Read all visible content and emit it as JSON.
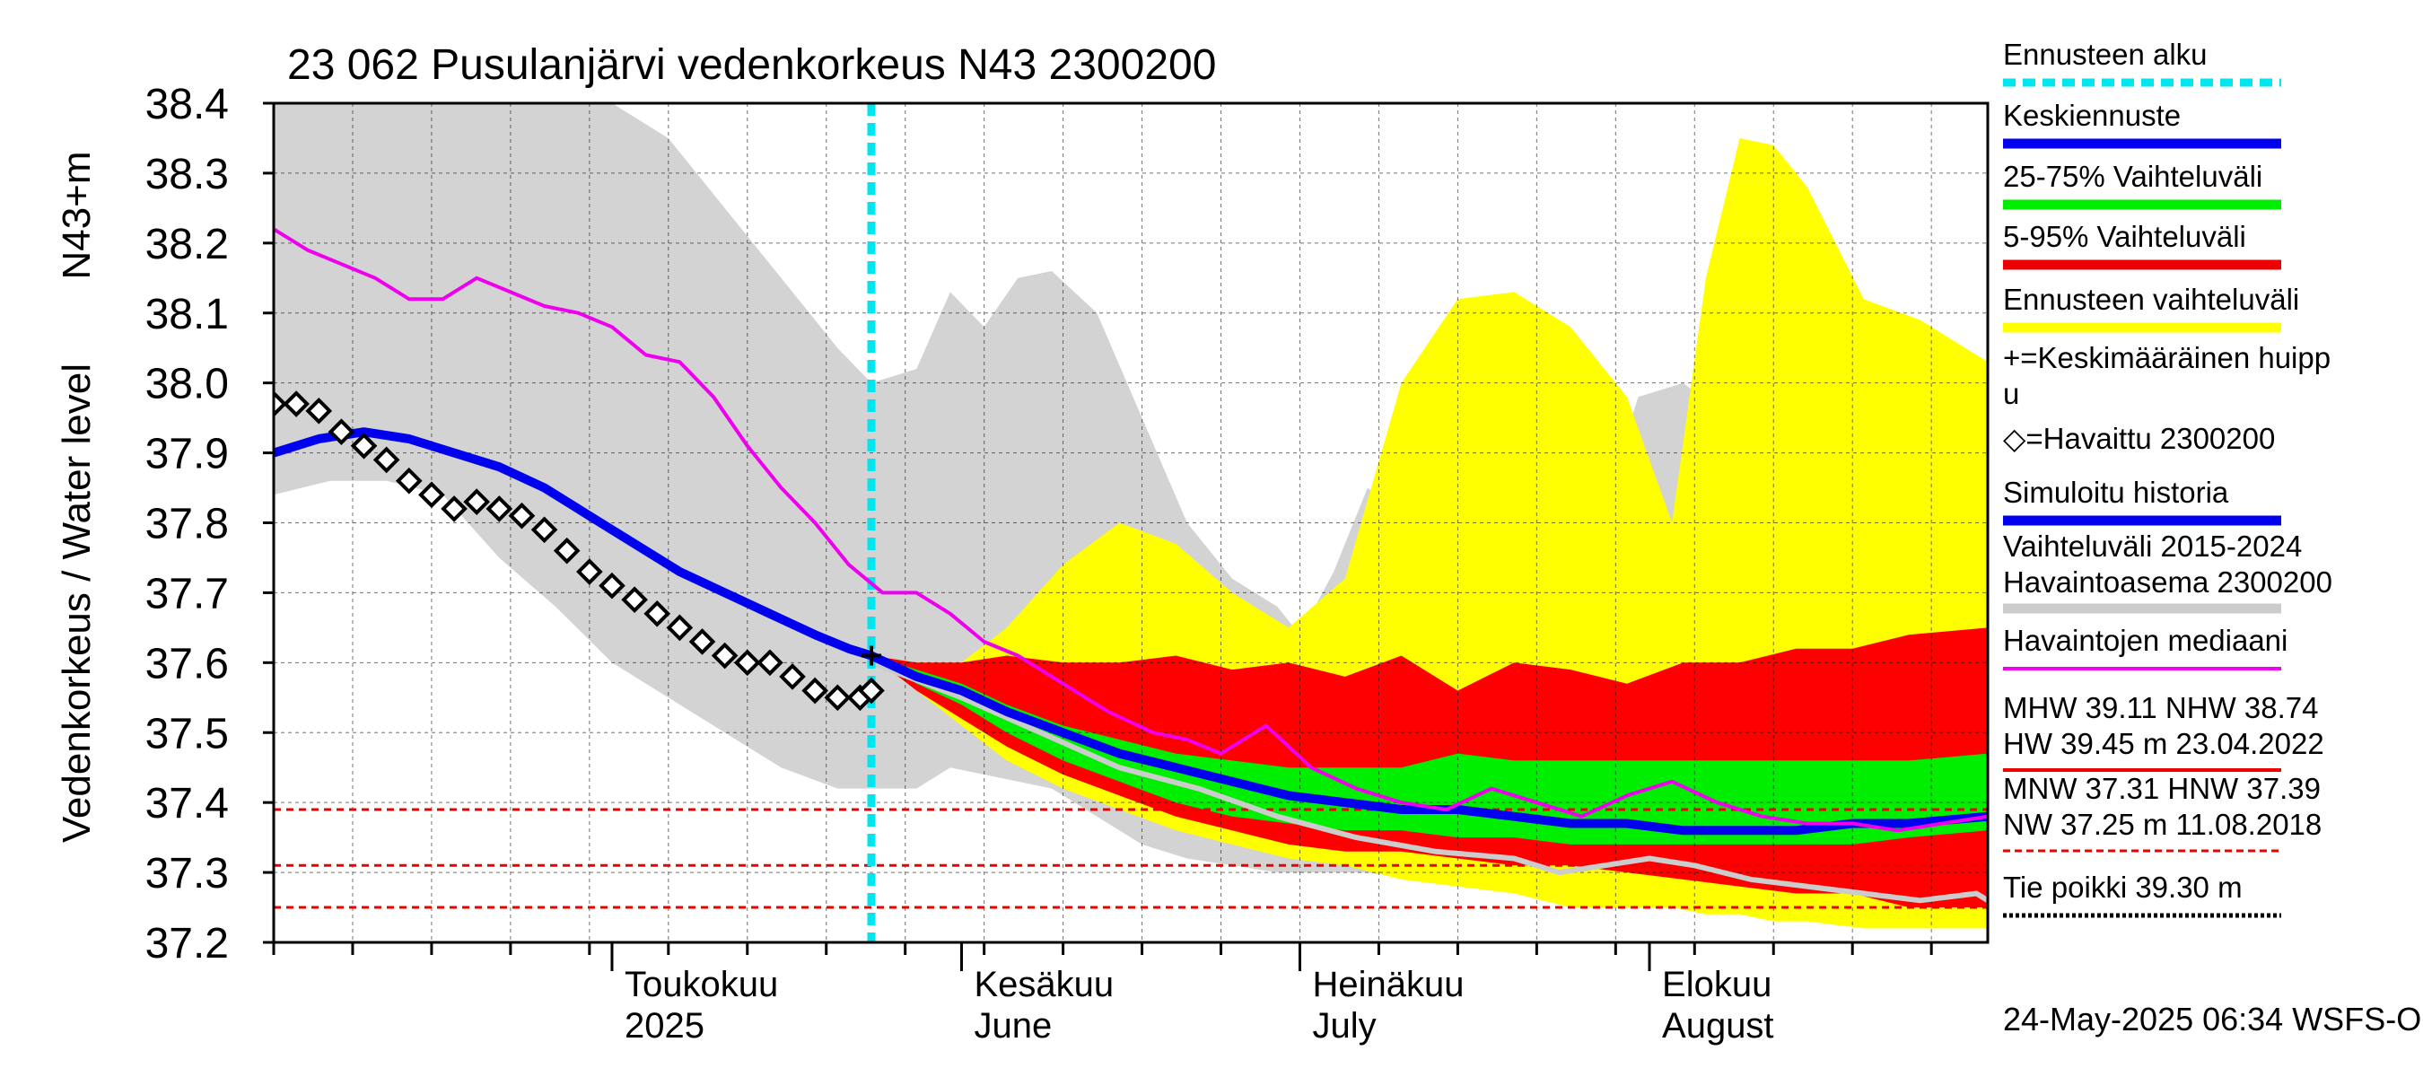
{
  "chart_data": {
    "type": "area",
    "title": "23 062 Pusulanjärvi vedenkorkeus N43 2300200",
    "ylabel_main": "Vedenkorkeus / Water level",
    "ylabel_unit": "N43+m",
    "ylim": [
      37.2,
      38.4
    ],
    "yticks": [
      "37.2",
      "37.3",
      "37.4",
      "37.5",
      "37.6",
      "37.7",
      "37.8",
      "37.9",
      "38.0",
      "38.1",
      "38.2",
      "38.3",
      "38.4"
    ],
    "x_range": [
      "2025-04-01",
      "2025-08-31"
    ],
    "month_labels": [
      {
        "fi": "Toukokuu",
        "en": "2025",
        "date": "2025-05-01"
      },
      {
        "fi": "Kesäkuu",
        "en": "June",
        "date": "2025-06-01"
      },
      {
        "fi": "Heinäkuu",
        "en": "July",
        "date": "2025-07-01"
      },
      {
        "fi": "Elokuu",
        "en": "August",
        "date": "2025-08-01"
      }
    ],
    "forecast_start": "2025-05-24",
    "grid": true,
    "legend_position": "right",
    "timestamp": "24-May-2025 06:34 WSFS-O",
    "legend": [
      {
        "label": "Ennusteen alku",
        "color": "#00e5ee",
        "style": "dotted"
      },
      {
        "label": "Keskiennuste",
        "color": "#0000ee",
        "style": "thick"
      },
      {
        "label": "25-75% Vaihteluväli",
        "color": "#00ee00",
        "style": "thick"
      },
      {
        "label": "5-95% Vaihteluväli",
        "color": "#ee0000",
        "style": "thick"
      },
      {
        "label": "Ennusteen vaihteluväli",
        "color": "#ffff00",
        "style": "thick"
      },
      {
        "label": "+=Keskimääräinen huipp",
        "label2": "u",
        "color": "#000000",
        "style": "none"
      },
      {
        "label": "◇=Havaittu 2300200",
        "color": "#000000",
        "style": "none"
      },
      {
        "label": "Simuloitu historia",
        "color": "#0000ee",
        "style": "thick"
      },
      {
        "label": "Vaihteluväli 2015-2024",
        "label2": " Havaintoasema 2300200",
        "color": "#cccccc",
        "style": "thick"
      },
      {
        "label": "Havaintojen mediaani",
        "color": "#ee00ee",
        "style": "line"
      },
      {
        "label": "MHW  39.11 NHW  38.74",
        "label2": "HW  39.45 m 23.04.2022",
        "color": "#ee0000",
        "style": "line"
      },
      {
        "label": "MNW  37.31 HNW  37.39",
        "label2": "NW  37.25 m 11.08.2018",
        "color": "#ee0000",
        "style": "dashed"
      },
      {
        "label": "Tie poikki 39.30 m",
        "color": "#000000",
        "style": "dotted"
      }
    ],
    "reference_lines": [
      {
        "name": "HNW",
        "value": 37.39
      },
      {
        "name": "MNW",
        "value": 37.31
      },
      {
        "name": "NW",
        "value": 37.25
      }
    ],
    "history_band": {
      "x": [
        "2025-04-01",
        "2025-04-06",
        "2025-04-11",
        "2025-04-16",
        "2025-04-21",
        "2025-04-26",
        "2025-05-01",
        "2025-05-06",
        "2025-05-11",
        "2025-05-16",
        "2025-05-21",
        "2025-05-24",
        "2025-05-28",
        "2025-05-31",
        "2025-06-03",
        "2025-06-06",
        "2025-06-09",
        "2025-06-13",
        "2025-06-17",
        "2025-06-21",
        "2025-06-25",
        "2025-06-29",
        "2025-07-01",
        "2025-07-04",
        "2025-07-07",
        "2025-07-11",
        "2025-07-15",
        "2025-07-19",
        "2025-07-23",
        "2025-07-27",
        "2025-07-31",
        "2025-08-04",
        "2025-08-08",
        "2025-08-12",
        "2025-08-16",
        "2025-08-20",
        "2025-08-24",
        "2025-08-28",
        "2025-08-31"
      ],
      "upper": [
        38.4,
        38.4,
        38.4,
        38.4,
        38.4,
        38.4,
        38.4,
        38.35,
        38.25,
        38.15,
        38.05,
        38.0,
        38.02,
        38.13,
        38.08,
        38.15,
        38.16,
        38.1,
        37.95,
        37.8,
        37.72,
        37.68,
        37.64,
        37.73,
        37.85,
        37.8,
        37.66,
        37.6,
        37.68,
        37.78,
        37.98,
        38.0,
        37.95,
        37.85,
        37.75,
        37.7,
        37.67,
        37.67,
        37.67
      ],
      "lower": [
        37.84,
        37.86,
        37.86,
        37.84,
        37.75,
        37.68,
        37.6,
        37.55,
        37.5,
        37.45,
        37.42,
        37.42,
        37.42,
        37.45,
        37.44,
        37.43,
        37.42,
        37.38,
        37.34,
        37.32,
        37.31,
        37.3,
        37.3,
        37.3,
        37.3,
        37.29,
        37.28,
        37.28,
        37.28,
        37.28,
        37.28,
        37.28,
        37.27,
        37.27,
        37.27,
        37.26,
        37.26,
        37.26,
        37.26
      ]
    },
    "forecast_range": {
      "x": [
        "2025-05-24",
        "2025-05-28",
        "2025-06-01",
        "2025-06-05",
        "2025-06-10",
        "2025-06-15",
        "2025-06-20",
        "2025-06-25",
        "2025-06-30",
        "2025-07-05",
        "2025-07-10",
        "2025-07-15",
        "2025-07-20",
        "2025-07-25",
        "2025-07-30",
        "2025-08-03",
        "2025-08-06",
        "2025-08-09",
        "2025-08-12",
        "2025-08-15",
        "2025-08-20",
        "2025-08-25",
        "2025-08-31"
      ],
      "upper": [
        37.61,
        37.6,
        37.6,
        37.65,
        37.74,
        37.8,
        37.77,
        37.7,
        37.65,
        37.72,
        38.0,
        38.12,
        38.13,
        38.08,
        37.98,
        37.8,
        38.15,
        38.35,
        38.34,
        38.28,
        38.12,
        38.09,
        38.03
      ],
      "lower": [
        37.61,
        37.56,
        37.51,
        37.46,
        37.42,
        37.39,
        37.36,
        37.34,
        37.32,
        37.31,
        37.29,
        37.28,
        37.27,
        37.25,
        37.25,
        37.25,
        37.24,
        37.24,
        37.23,
        37.23,
        37.22,
        37.22,
        37.22
      ]
    },
    "band_5_95": {
      "x": [
        "2025-05-24",
        "2025-05-28",
        "2025-06-01",
        "2025-06-05",
        "2025-06-10",
        "2025-06-15",
        "2025-06-20",
        "2025-06-25",
        "2025-06-30",
        "2025-07-05",
        "2025-07-10",
        "2025-07-15",
        "2025-07-20",
        "2025-07-25",
        "2025-07-30",
        "2025-08-04",
        "2025-08-09",
        "2025-08-14",
        "2025-08-19",
        "2025-08-24",
        "2025-08-31"
      ],
      "upper": [
        37.61,
        37.6,
        37.6,
        37.61,
        37.6,
        37.6,
        37.61,
        37.59,
        37.6,
        37.58,
        37.61,
        37.56,
        37.6,
        37.59,
        37.57,
        37.6,
        37.6,
        37.62,
        37.62,
        37.64,
        37.65
      ],
      "lower": [
        37.61,
        37.56,
        37.52,
        37.48,
        37.44,
        37.41,
        37.38,
        37.36,
        37.34,
        37.33,
        37.33,
        37.32,
        37.31,
        37.31,
        37.3,
        37.29,
        37.28,
        37.27,
        37.27,
        37.25,
        37.25
      ]
    },
    "band_25_75": {
      "x": [
        "2025-05-24",
        "2025-05-28",
        "2025-06-01",
        "2025-06-05",
        "2025-06-10",
        "2025-06-15",
        "2025-06-20",
        "2025-06-25",
        "2025-06-30",
        "2025-07-05",
        "2025-07-10",
        "2025-07-15",
        "2025-07-20",
        "2025-07-25",
        "2025-07-30",
        "2025-08-04",
        "2025-08-09",
        "2025-08-14",
        "2025-08-19",
        "2025-08-24",
        "2025-08-31"
      ],
      "upper": [
        37.61,
        37.59,
        37.57,
        37.54,
        37.51,
        37.49,
        37.47,
        37.46,
        37.45,
        37.45,
        37.45,
        37.47,
        37.46,
        37.46,
        37.46,
        37.46,
        37.46,
        37.46,
        37.46,
        37.46,
        37.47
      ],
      "lower": [
        37.61,
        37.57,
        37.54,
        37.5,
        37.46,
        37.43,
        37.4,
        37.38,
        37.37,
        37.36,
        37.36,
        37.35,
        37.35,
        37.34,
        37.34,
        37.34,
        37.34,
        37.34,
        37.34,
        37.35,
        37.36
      ]
    },
    "series": [
      {
        "name": "Keskiennuste",
        "x": [
          "2025-05-24",
          "2025-05-28",
          "2025-06-01",
          "2025-06-05",
          "2025-06-10",
          "2025-06-15",
          "2025-06-20",
          "2025-06-25",
          "2025-06-30",
          "2025-07-05",
          "2025-07-10",
          "2025-07-15",
          "2025-07-20",
          "2025-07-25",
          "2025-07-30",
          "2025-08-04",
          "2025-08-09",
          "2025-08-14",
          "2025-08-19",
          "2025-08-24",
          "2025-08-31"
        ],
        "values": [
          37.61,
          37.58,
          37.56,
          37.53,
          37.5,
          37.47,
          37.45,
          37.43,
          37.41,
          37.4,
          37.39,
          37.39,
          37.38,
          37.37,
          37.37,
          37.36,
          37.36,
          37.36,
          37.37,
          37.37,
          37.38
        ]
      },
      {
        "name": "Simuloitu historia",
        "x": [
          "2025-04-01",
          "2025-04-05",
          "2025-04-09",
          "2025-04-13",
          "2025-04-17",
          "2025-04-21",
          "2025-04-25",
          "2025-04-29",
          "2025-05-03",
          "2025-05-07",
          "2025-05-11",
          "2025-05-15",
          "2025-05-19",
          "2025-05-22",
          "2025-05-24"
        ],
        "values": [
          37.9,
          37.92,
          37.93,
          37.92,
          37.9,
          37.88,
          37.85,
          37.81,
          37.77,
          37.73,
          37.7,
          37.67,
          37.64,
          37.62,
          37.61
        ]
      },
      {
        "name": "Havaintojen mediaani",
        "x": [
          "2025-04-01",
          "2025-04-04",
          "2025-04-07",
          "2025-04-10",
          "2025-04-13",
          "2025-04-16",
          "2025-04-19",
          "2025-04-22",
          "2025-04-25",
          "2025-04-28",
          "2025-05-01",
          "2025-05-04",
          "2025-05-07",
          "2025-05-10",
          "2025-05-13",
          "2025-05-16",
          "2025-05-19",
          "2025-05-22",
          "2025-05-25",
          "2025-05-28",
          "2025-05-31",
          "2025-06-03",
          "2025-06-06",
          "2025-06-10",
          "2025-06-14",
          "2025-06-18",
          "2025-06-21",
          "2025-06-24",
          "2025-06-28",
          "2025-07-02",
          "2025-07-06",
          "2025-07-10",
          "2025-07-14",
          "2025-07-18",
          "2025-07-22",
          "2025-07-26",
          "2025-07-30",
          "2025-08-03",
          "2025-08-07",
          "2025-08-11",
          "2025-08-15",
          "2025-08-19",
          "2025-08-23",
          "2025-08-27",
          "2025-08-31"
        ],
        "values": [
          38.22,
          38.19,
          38.17,
          38.15,
          38.12,
          38.12,
          38.15,
          38.13,
          38.11,
          38.1,
          38.08,
          38.04,
          38.03,
          37.98,
          37.91,
          37.85,
          37.8,
          37.74,
          37.7,
          37.7,
          37.67,
          37.63,
          37.61,
          37.57,
          37.53,
          37.5,
          37.49,
          37.47,
          37.51,
          37.45,
          37.42,
          37.4,
          37.39,
          37.42,
          37.4,
          37.38,
          37.41,
          37.43,
          37.4,
          37.38,
          37.37,
          37.37,
          37.36,
          37.37,
          37.38
        ]
      },
      {
        "name": "Havaittu 2300200",
        "x": [
          "2025-04-01",
          "2025-04-03",
          "2025-04-05",
          "2025-04-07",
          "2025-04-09",
          "2025-04-11",
          "2025-04-13",
          "2025-04-15",
          "2025-04-17",
          "2025-04-19",
          "2025-04-21",
          "2025-04-23",
          "2025-04-25",
          "2025-04-27",
          "2025-04-29",
          "2025-05-01",
          "2025-05-03",
          "2025-05-05",
          "2025-05-07",
          "2025-05-09",
          "2025-05-11",
          "2025-05-13",
          "2025-05-15",
          "2025-05-17",
          "2025-05-19",
          "2025-05-21",
          "2025-05-23",
          "2025-05-24"
        ],
        "values": [
          37.97,
          37.97,
          37.96,
          37.93,
          37.91,
          37.89,
          37.86,
          37.84,
          37.82,
          37.83,
          37.82,
          37.81,
          37.79,
          37.76,
          37.73,
          37.71,
          37.69,
          37.67,
          37.65,
          37.63,
          37.61,
          37.6,
          37.6,
          37.58,
          37.56,
          37.55,
          37.55,
          37.56
        ]
      }
    ],
    "history_median": {
      "x": [
        "2025-05-24",
        "2025-06-01",
        "2025-06-08",
        "2025-06-15",
        "2025-06-22",
        "2025-06-29",
        "2025-07-06",
        "2025-07-13",
        "2025-07-20",
        "2025-07-24",
        "2025-07-28",
        "2025-08-01",
        "2025-08-05",
        "2025-08-10",
        "2025-08-15",
        "2025-08-20",
        "2025-08-25",
        "2025-08-30",
        "2025-08-31"
      ],
      "values": [
        37.6,
        37.55,
        37.5,
        37.45,
        37.42,
        37.38,
        37.35,
        37.33,
        37.32,
        37.3,
        37.31,
        37.32,
        37.31,
        37.29,
        37.28,
        37.27,
        37.26,
        37.27,
        37.26
      ]
    },
    "mean_peak": {
      "x": "2025-05-24",
      "value": 37.61
    }
  }
}
